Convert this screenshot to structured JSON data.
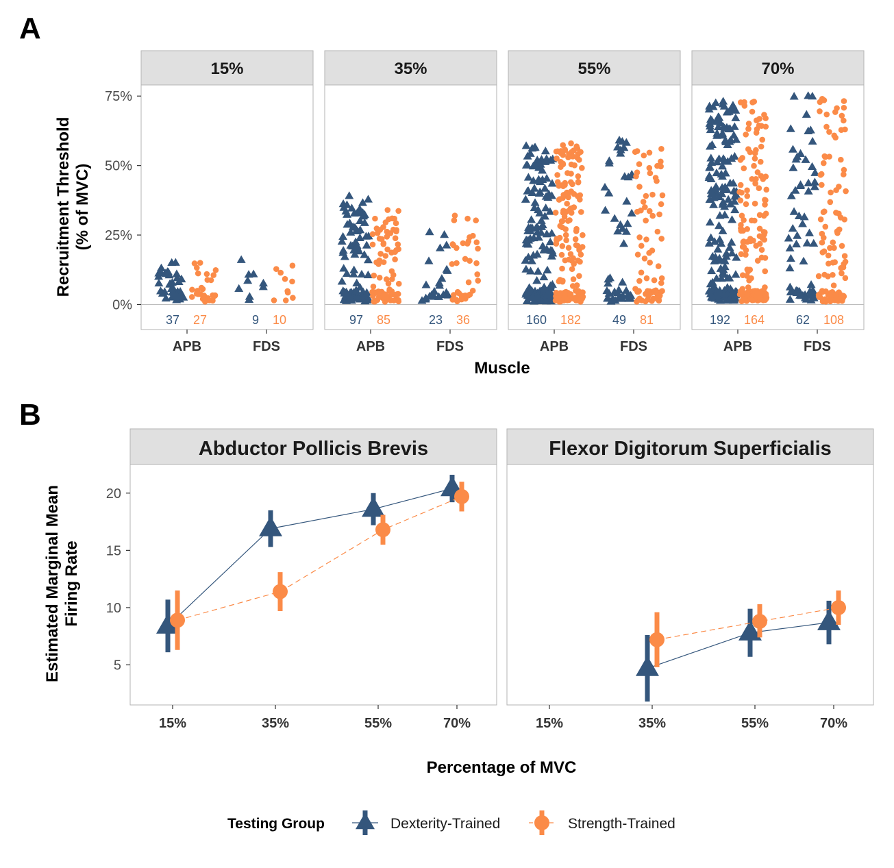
{
  "colors": {
    "dexterity": "#34567C",
    "strength": "#FB8B48",
    "strip_bg": "#E0E0E0",
    "panel_border": "#B3B3B3"
  },
  "chart_data": [
    {
      "panel": "A",
      "type": "scatter",
      "xlabel": "Muscle",
      "ylabel_lines": [
        "Recruitment Threshold",
        "(% of MVC)"
      ],
      "y_tick_labels": [
        "0%",
        "25%",
        "50%",
        "75%"
      ],
      "y_ticks": [
        0,
        25,
        50,
        75
      ],
      "ylim": [
        -9,
        79
      ],
      "facets": [
        "15%",
        "35%",
        "55%",
        "70%"
      ],
      "categories": [
        "APB",
        "FDS"
      ],
      "counts": {
        "15%": {
          "APB": [
            37,
            27
          ],
          "FDS": [
            9,
            10
          ]
        },
        "35%": {
          "APB": [
            97,
            85
          ],
          "FDS": [
            23,
            36
          ]
        },
        "55%": {
          "APB": [
            160,
            182
          ],
          "FDS": [
            49,
            81
          ]
        },
        "70%": {
          "APB": [
            192,
            164
          ],
          "FDS": [
            62,
            108
          ]
        }
      },
      "y_max_approx": {
        "15%": {
          "APB": [
            15,
            15
          ],
          "FDS": [
            16,
            14
          ]
        },
        "35%": {
          "APB": [
            39,
            34
          ],
          "FDS": [
            26,
            32
          ]
        },
        "55%": {
          "APB": [
            57,
            58
          ],
          "FDS": [
            59,
            56
          ]
        },
        "70%": {
          "APB": [
            73,
            73
          ],
          "FDS": [
            75,
            74
          ]
        }
      }
    },
    {
      "panel": "B",
      "type": "line",
      "xlabel": "Percentage of MVC",
      "ylabel_lines": [
        "Estimated Marginal Mean",
        "Firing Rate"
      ],
      "categories": [
        "15%",
        "35%",
        "55%",
        "70%"
      ],
      "y_ticks": [
        5,
        10,
        15,
        20
      ],
      "ylim": [
        1.5,
        22.5
      ],
      "facets": [
        {
          "title": "Abductor Pollicis Brevis",
          "series": [
            {
              "name": "Dexterity-Trained",
              "values": [
                8.4,
                16.9,
                18.6,
                20.4
              ],
              "lower": [
                6.1,
                15.3,
                17.2,
                19.2
              ],
              "upper": [
                10.7,
                18.5,
                20.0,
                21.6
              ]
            },
            {
              "name": "Strength-Trained",
              "values": [
                8.9,
                11.4,
                16.8,
                19.7
              ],
              "lower": [
                6.3,
                9.7,
                15.5,
                18.4
              ],
              "upper": [
                11.5,
                13.1,
                18.1,
                21.0
              ]
            }
          ]
        },
        {
          "title": "Flexor Digitorum Superficialis",
          "series": [
            {
              "name": "Dexterity-Trained",
              "values": [
                null,
                4.7,
                7.8,
                8.7
              ],
              "lower": [
                null,
                1.8,
                5.7,
                6.8
              ],
              "upper": [
                null,
                7.6,
                9.9,
                10.6
              ]
            },
            {
              "name": "Strength-Trained",
              "values": [
                null,
                7.2,
                8.8,
                10.0
              ],
              "lower": [
                null,
                4.8,
                7.4,
                8.5
              ],
              "upper": [
                null,
                9.6,
                10.3,
                11.5
              ]
            }
          ]
        }
      ]
    }
  ],
  "panel_labels": [
    "A",
    "B"
  ],
  "legend": {
    "title": "Testing Group",
    "items": [
      "Dexterity-Trained",
      "Strength-Trained"
    ]
  }
}
